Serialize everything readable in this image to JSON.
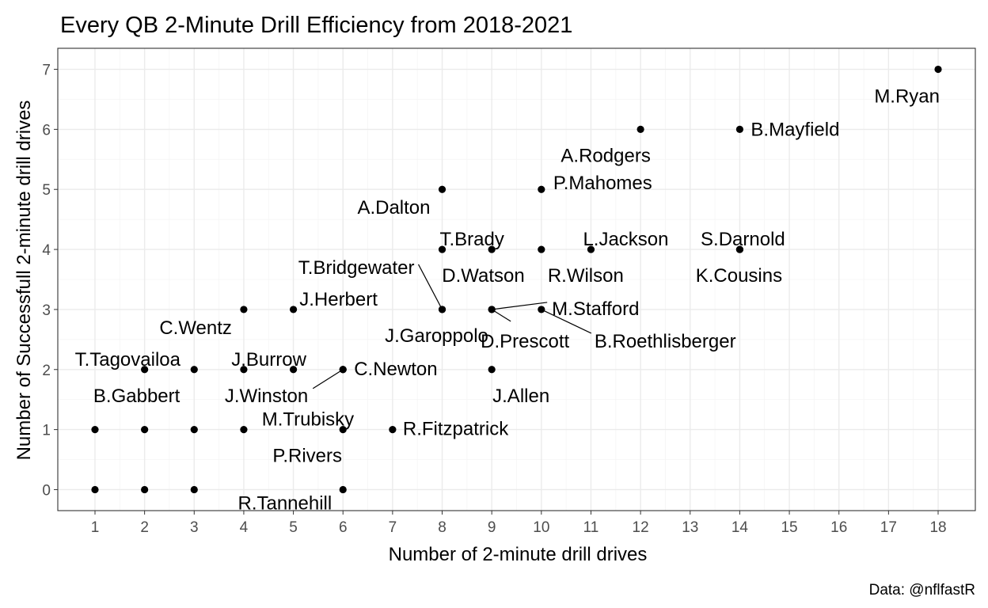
{
  "chart_data": {
    "type": "scatter",
    "title": "Every QB 2-Minute Drill Efficiency from 2018-2021",
    "xlabel": "Number of 2-minute drill drives",
    "ylabel": "Number of Successfull 2-minute drill drives",
    "caption": "Data: @nflfastR",
    "xlim": [
      0.25,
      18.75
    ],
    "ylim": [
      -0.35,
      7.35
    ],
    "x_ticks": [
      1,
      2,
      3,
      4,
      5,
      6,
      7,
      8,
      9,
      10,
      11,
      12,
      13,
      14,
      15,
      16,
      17,
      18
    ],
    "y_ticks": [
      0,
      1,
      2,
      3,
      4,
      5,
      6,
      7
    ],
    "grid": true,
    "points": [
      {
        "x": 18,
        "y": 7,
        "label": "M.Ryan"
      },
      {
        "x": 14,
        "y": 6,
        "label": "B.Mayfield"
      },
      {
        "x": 12,
        "y": 6,
        "label": "A.Rodgers"
      },
      {
        "x": 10,
        "y": 5,
        "label": "P.Mahomes"
      },
      {
        "x": 8,
        "y": 5,
        "label": "A.Dalton"
      },
      {
        "x": 14,
        "y": 4,
        "label": "S.Darnold"
      },
      {
        "x": 14,
        "y": 4,
        "label": "K.Cousins"
      },
      {
        "x": 11,
        "y": 4,
        "label": "L.Jackson"
      },
      {
        "x": 10,
        "y": 4,
        "label": "R.Wilson"
      },
      {
        "x": 9,
        "y": 4,
        "label": "T.Brady"
      },
      {
        "x": 8,
        "y": 4,
        "label": "D.Watson"
      },
      {
        "x": 8,
        "y": 3,
        "label": "T.Bridgewater"
      },
      {
        "x": 8,
        "y": 3,
        "label": "J.Garoppolo"
      },
      {
        "x": 9,
        "y": 3,
        "label": "M.Stafford"
      },
      {
        "x": 9,
        "y": 3,
        "label": "D.Prescott"
      },
      {
        "x": 10,
        "y": 3,
        "label": "B.Roethlisberger"
      },
      {
        "x": 5,
        "y": 3,
        "label": "J.Herbert"
      },
      {
        "x": 4,
        "y": 3,
        "label": "C.Wentz"
      },
      {
        "x": 9,
        "y": 2,
        "label": "J.Allen"
      },
      {
        "x": 6,
        "y": 2,
        "label": "C.Newton"
      },
      {
        "x": 6,
        "y": 2,
        "label": "J.Winston"
      },
      {
        "x": 5,
        "y": 2,
        "label": "J.Burrow"
      },
      {
        "x": 4,
        "y": 2,
        "label": ""
      },
      {
        "x": 3,
        "y": 2,
        "label": "T.Tagovailoa"
      },
      {
        "x": 2,
        "y": 2,
        "label": "B.Gabbert"
      },
      {
        "x": 7,
        "y": 1,
        "label": "R.Fitzpatrick"
      },
      {
        "x": 6,
        "y": 1,
        "label": "P.Rivers"
      },
      {
        "x": 4,
        "y": 1,
        "label": "M.Trubisky"
      },
      {
        "x": 3,
        "y": 1,
        "label": ""
      },
      {
        "x": 2,
        "y": 1,
        "label": ""
      },
      {
        "x": 1,
        "y": 1,
        "label": ""
      },
      {
        "x": 6,
        "y": 0,
        "label": "R.Tannehill"
      },
      {
        "x": 3,
        "y": 0,
        "label": ""
      },
      {
        "x": 2,
        "y": 0,
        "label": ""
      },
      {
        "x": 1,
        "y": 0,
        "label": ""
      }
    ]
  },
  "colors": {
    "point": "#000000",
    "grid_major": "#ebebeb",
    "grid_minor": "#f5f5f5",
    "panel_border": "#333333",
    "tick_label": "#4d4d4d"
  }
}
